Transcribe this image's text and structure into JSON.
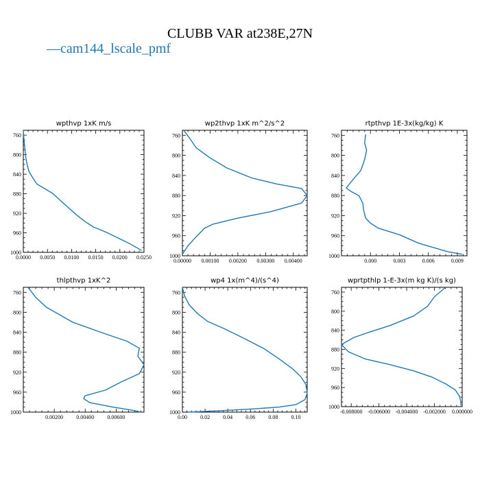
{
  "figure": {
    "title": "CLUBB VAR at238E,27N",
    "legend": [
      {
        "marker": "—",
        "label": "cam144_lscale_pmf",
        "color": "#1f77b4"
      }
    ]
  },
  "chart_data": [
    {
      "type": "line",
      "title": "wpthvp  1xK m/s",
      "series_name": "cam144_lscale_pmf",
      "xlim": [
        0.0,
        0.025
      ],
      "ylim": [
        1000,
        750
      ],
      "xticks": [
        0.0,
        0.005,
        0.01,
        0.015,
        0.02,
        0.025
      ],
      "xtick_labels": [
        "0.0000",
        "0.0050",
        "0.0100",
        "0.0150",
        "0.0200",
        "0.0250"
      ],
      "yticks": [
        760,
        800,
        840,
        880,
        920,
        960,
        1000
      ],
      "x": [
        0.0,
        0.0001,
        0.0003,
        0.0005,
        0.0008,
        0.0012,
        0.002,
        0.0028,
        0.0045,
        0.0062,
        0.0078,
        0.0095,
        0.011,
        0.0125,
        0.0145,
        0.017,
        0.0195,
        0.022,
        0.0245
      ],
      "y": [
        750,
        765,
        785,
        805,
        820,
        835,
        848,
        860,
        870,
        880,
        895,
        910,
        923,
        935,
        948,
        958,
        970,
        982,
        996
      ]
    },
    {
      "type": "line",
      "title": "wp2thvp  1xK m^2/s^2",
      "series_name": "cam144_lscale_pmf",
      "xlim": [
        0.0,
        0.0045
      ],
      "ylim": [
        1000,
        750
      ],
      "xticks": [
        0.0,
        0.001,
        0.002,
        0.003,
        0.004
      ],
      "xtick_labels": [
        "0.00000",
        "0.00100",
        "0.00200",
        "0.00300",
        "0.00400"
      ],
      "yticks": [
        760,
        800,
        840,
        880,
        920,
        960,
        1000
      ],
      "x": [
        5e-05,
        0.00025,
        0.0005,
        0.001,
        0.0016,
        0.0025,
        0.0034,
        0.0043,
        0.0045,
        0.0043,
        0.0032,
        0.002,
        0.0011,
        0.0008,
        0.0005,
        0.0002,
        0.0
      ],
      "y": [
        750,
        765,
        785,
        805,
        825,
        845,
        857,
        866,
        880,
        895,
        912,
        925,
        937,
        945,
        962,
        980,
        997
      ]
    },
    {
      "type": "line",
      "title": "rtpthvp  1E-3x(kg/kg) K",
      "series_name": "cam144_lscale_pmf",
      "xlim": [
        -0.003,
        0.01
      ],
      "ylim": [
        1000,
        750
      ],
      "xticks": [
        0.0,
        0.003,
        0.006,
        0.009
      ],
      "xtick_labels": [
        "0.000",
        "0.003",
        "0.006",
        "0.009"
      ],
      "yticks": [
        760,
        800,
        840,
        880,
        920,
        960,
        1000
      ],
      "x": [
        -0.0005,
        -0.0006,
        -0.0004,
        -0.0006,
        -0.001,
        -0.0018,
        -0.0025,
        -0.002,
        -0.0012,
        -0.0008,
        -0.0007,
        -0.0005,
        0.0,
        0.0008,
        0.003,
        0.005,
        0.008,
        0.0095
      ],
      "y": [
        758,
        775,
        790,
        808,
        830,
        848,
        865,
        872,
        880,
        895,
        910,
        925,
        935,
        945,
        958,
        975,
        992,
        997
      ]
    },
    {
      "type": "line",
      "title": "thlpthvp  1xK^2",
      "series_name": "cam144_lscale_pmf",
      "xlim": [
        0.0,
        0.0078
      ],
      "ylim": [
        1000,
        750
      ],
      "xticks": [
        0.002,
        0.004,
        0.006
      ],
      "xtick_labels": [
        "0.00200",
        "0.00400",
        "0.00600"
      ],
      "yticks": [
        760,
        800,
        840,
        880,
        920,
        960,
        1000
      ],
      "x": [
        0.0003,
        0.0008,
        0.0015,
        0.0032,
        0.005,
        0.0067,
        0.0075,
        0.0074,
        0.0078,
        0.0075,
        0.0063,
        0.0053,
        0.004,
        0.0039,
        0.0043,
        0.0058,
        0.0072,
        0.0076
      ],
      "y": [
        750,
        770,
        790,
        820,
        840,
        858,
        872,
        888,
        905,
        923,
        940,
        956,
        967,
        973,
        981,
        990,
        997,
        1000
      ]
    },
    {
      "type": "line",
      "title": "wp4  1x(m^4)/(s^4)",
      "series_name": "cam144_lscale_pmf",
      "xlim": [
        0.0,
        0.11
      ],
      "ylim": [
        1000,
        750
      ],
      "xticks": [
        0.0,
        0.02,
        0.04,
        0.06,
        0.08,
        0.1
      ],
      "xtick_labels": [
        "0.00",
        "0.02",
        "0.04",
        "0.06",
        "0.08",
        "0.10"
      ],
      "yticks": [
        760,
        800,
        840,
        880,
        920,
        960,
        1000
      ],
      "x": [
        0.0,
        0.002,
        0.006,
        0.013,
        0.022,
        0.037,
        0.055,
        0.072,
        0.085,
        0.097,
        0.104,
        0.109,
        0.11,
        0.108,
        0.1,
        0.085,
        0.06,
        0.035,
        0.005
      ],
      "y": [
        750,
        768,
        785,
        802,
        818,
        833,
        853,
        873,
        893,
        913,
        928,
        945,
        962,
        975,
        985,
        990,
        994,
        997,
        1000
      ]
    },
    {
      "type": "line",
      "title": "wprtpthlp  1-E-3x(m kg K)/(s kg)",
      "series_name": "cam144_lscale_pmf",
      "xlim": [
        -0.0087,
        0.0
      ],
      "ylim": [
        1000,
        750
      ],
      "xticks": [
        -0.008,
        -0.006,
        -0.004,
        -0.002,
        0.0
      ],
      "xtick_labels": [
        "-0.008000",
        "-0.006000",
        "-0.004000",
        "-0.002000",
        "0.000000"
      ],
      "yticks": [
        760,
        800,
        840,
        880,
        920,
        960,
        1000
      ],
      "x": [
        -0.0012,
        -0.002,
        -0.0025,
        -0.0035,
        -0.0052,
        -0.0068,
        -0.0078,
        -0.0087,
        -0.0082,
        -0.007,
        -0.0052,
        -0.0035,
        -0.0022,
        -0.0012,
        -0.0005,
        -0.0002,
        -0.0001,
        -0.0001
      ],
      "y": [
        750,
        770,
        790,
        810,
        830,
        845,
        855,
        870,
        885,
        900,
        912,
        925,
        938,
        952,
        965,
        978,
        990,
        998
      ]
    }
  ]
}
